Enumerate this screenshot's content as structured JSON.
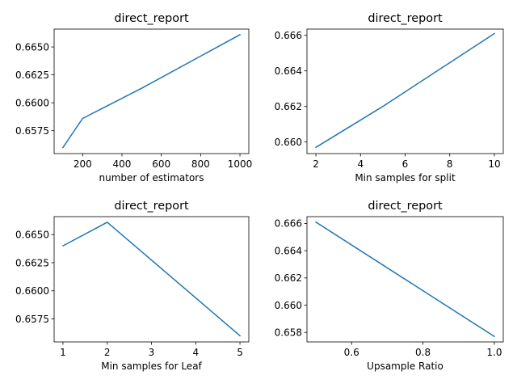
{
  "chart_data": [
    {
      "type": "line",
      "title": "direct_report",
      "xlabel": "number of estimators",
      "ylabel": "",
      "xlim": [
        55,
        1045
      ],
      "ylim": [
        0.65545,
        0.6666
      ],
      "xticks": [
        200,
        400,
        600,
        800,
        1000
      ],
      "xtick_labels": [
        "200",
        "400",
        "600",
        "800",
        "1000"
      ],
      "yticks": [
        0.6575,
        0.66,
        0.6625,
        0.665
      ],
      "ytick_labels": [
        "0.6575",
        "0.6600",
        "0.6625",
        "0.6650"
      ],
      "grid": false,
      "color": "#1f77b4",
      "x": [
        100,
        200,
        500,
        1000
      ],
      "y": [
        0.656,
        0.6586,
        0.6613,
        0.6661
      ]
    },
    {
      "type": "line",
      "title": "direct_report",
      "xlabel": "Min samples for split",
      "ylabel": "",
      "xlim": [
        1.6,
        10.4
      ],
      "ylim": [
        0.65935,
        0.66635
      ],
      "xticks": [
        2,
        4,
        6,
        8,
        10
      ],
      "xtick_labels": [
        "2",
        "4",
        "6",
        "8",
        "10"
      ],
      "yticks": [
        0.66,
        0.662,
        0.664,
        0.666
      ],
      "ytick_labels": [
        "0.660",
        "0.662",
        "0.664",
        "0.666"
      ],
      "grid": false,
      "color": "#1f77b4",
      "x": [
        2,
        5,
        10
      ],
      "y": [
        0.6597,
        0.662,
        0.6661
      ]
    },
    {
      "type": "line",
      "title": "direct_report",
      "xlabel": "Min samples for Leaf",
      "ylabel": "",
      "xlim": [
        0.8,
        5.2
      ],
      "ylim": [
        0.65545,
        0.6666
      ],
      "xticks": [
        1,
        2,
        3,
        4,
        5
      ],
      "xtick_labels": [
        "1",
        "2",
        "3",
        "4",
        "5"
      ],
      "yticks": [
        0.6575,
        0.66,
        0.6625,
        0.665
      ],
      "ytick_labels": [
        "0.6575",
        "0.6600",
        "0.6625",
        "0.6650"
      ],
      "grid": false,
      "color": "#1f77b4",
      "x": [
        1,
        2,
        5
      ],
      "y": [
        0.664,
        0.6661,
        0.656
      ]
    },
    {
      "type": "line",
      "title": "direct_report",
      "xlabel": "Upsample Ratio",
      "ylabel": "",
      "xlim": [
        0.475,
        1.025
      ],
      "ylim": [
        0.6573,
        0.6665
      ],
      "xticks": [
        0.6,
        0.8,
        1.0
      ],
      "xtick_labels": [
        "0.6",
        "0.8",
        "1.0"
      ],
      "yticks": [
        0.658,
        0.66,
        0.662,
        0.664,
        0.666
      ],
      "ytick_labels": [
        "0.658",
        "0.660",
        "0.662",
        "0.664",
        "0.666"
      ],
      "grid": false,
      "color": "#1f77b4",
      "x": [
        0.5,
        1.0
      ],
      "y": [
        0.6661,
        0.6577
      ]
    }
  ]
}
